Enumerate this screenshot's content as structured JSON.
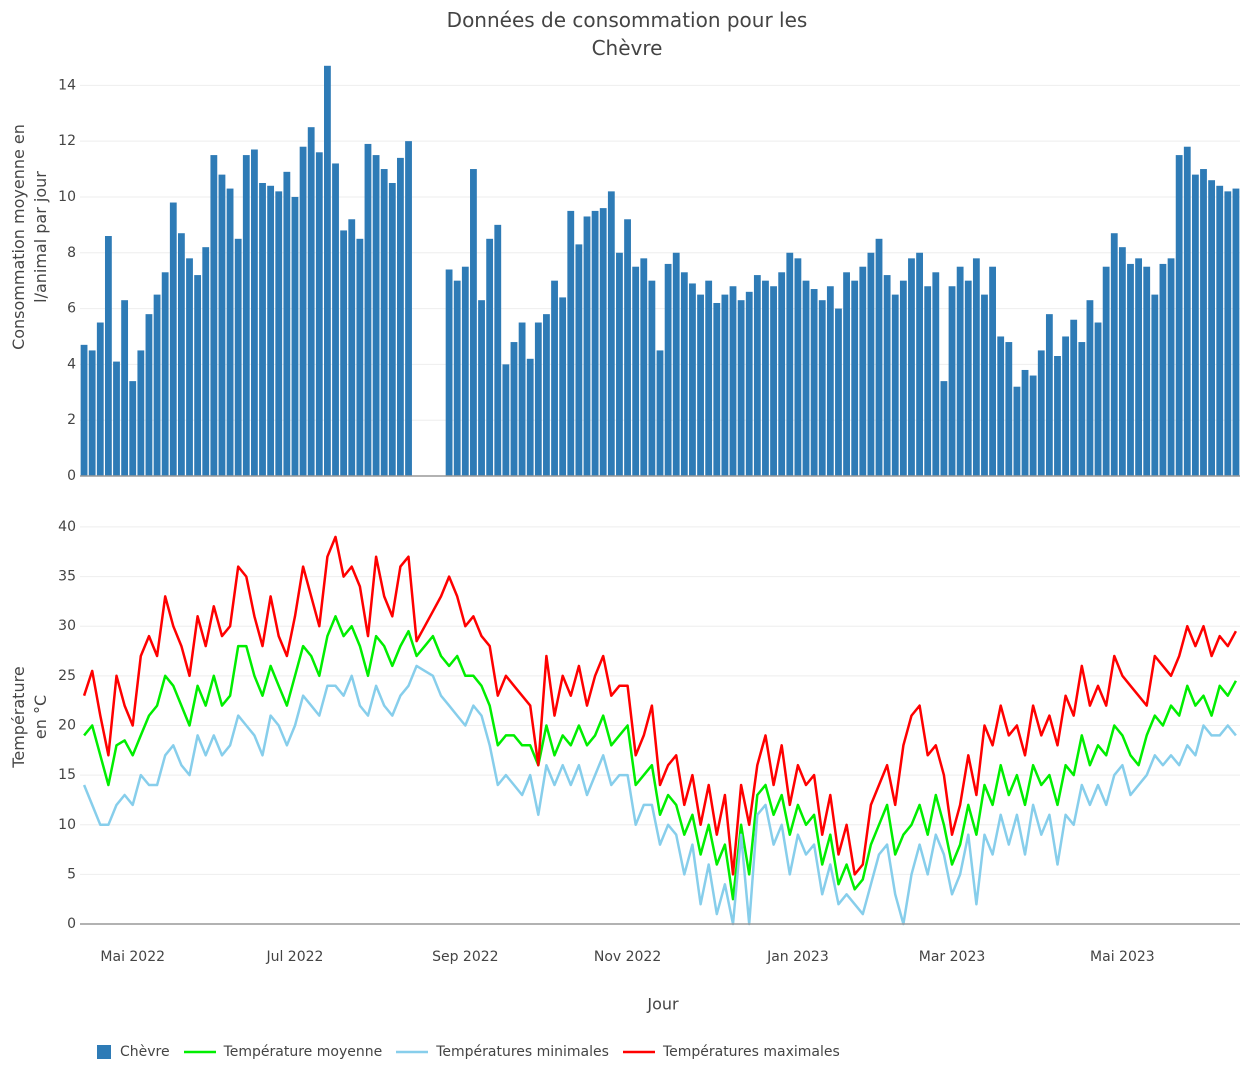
{
  "chart_data": [
    {
      "type": "bar",
      "title": "Données de consommation pour les Chèvre",
      "ylabel": "Consommation moyenne en l/animal par jour",
      "ylim": [
        0,
        14.8
      ],
      "yticks": [
        0,
        2,
        4,
        6,
        8,
        10,
        12,
        14
      ],
      "grid": true,
      "series": [
        {
          "name": "Chèvre",
          "color": "#2e7bb6",
          "values": [
            4.7,
            4.5,
            5.5,
            8.6,
            4.1,
            6.3,
            3.4,
            4.5,
            5.8,
            6.5,
            7.3,
            9.8,
            8.7,
            7.8,
            7.2,
            8.2,
            11.5,
            10.8,
            10.3,
            8.5,
            11.5,
            11.7,
            10.5,
            10.4,
            10.2,
            10.9,
            10.0,
            11.8,
            12.5,
            11.6,
            14.7,
            11.2,
            8.8,
            9.2,
            8.5,
            11.9,
            11.5,
            11.0,
            10.5,
            11.4,
            12.0,
            null,
            null,
            null,
            null,
            7.4,
            7.0,
            7.5,
            11.0,
            6.3,
            8.5,
            9.0,
            4.0,
            4.8,
            5.5,
            4.2,
            5.5,
            5.8,
            7.0,
            6.4,
            9.5,
            8.3,
            9.3,
            9.5,
            9.6,
            10.2,
            8.0,
            9.2,
            7.5,
            7.8,
            7.0,
            4.5,
            7.6,
            8.0,
            7.3,
            6.9,
            6.5,
            7.0,
            6.2,
            6.5,
            6.8,
            6.3,
            6.6,
            7.2,
            7.0,
            6.8,
            7.3,
            8.0,
            7.8,
            7.0,
            6.7,
            6.3,
            6.8,
            6.0,
            7.3,
            7.0,
            7.5,
            8.0,
            8.5,
            7.2,
            6.5,
            7.0,
            7.8,
            8.0,
            6.8,
            7.3,
            3.4,
            6.8,
            7.5,
            7.0,
            7.8,
            6.5,
            7.5,
            5.0,
            4.8,
            3.2,
            3.8,
            3.6,
            4.5,
            5.8,
            4.3,
            5.0,
            5.6,
            4.8,
            6.3,
            5.5,
            7.5,
            8.7,
            8.2,
            7.6,
            7.8,
            7.5,
            6.5,
            7.6,
            7.8,
            11.5,
            11.8,
            10.8,
            11.0,
            10.6,
            10.4,
            10.2,
            10.3
          ]
        }
      ]
    },
    {
      "type": "line",
      "ylabel": "Température en °C",
      "xlabel": "Jour",
      "ylim": [
        -0.5,
        41
      ],
      "yticks": [
        0,
        5,
        10,
        15,
        20,
        25,
        30,
        35,
        40
      ],
      "grid": true,
      "categories": [
        null,
        null,
        null,
        null,
        null,
        null,
        "Mai 2022",
        null,
        null,
        null,
        null,
        null,
        null,
        null,
        null,
        null,
        null,
        null,
        null,
        null,
        null,
        null,
        null,
        null,
        null,
        null,
        "Jul 2022",
        null,
        null,
        null,
        null,
        null,
        null,
        null,
        null,
        null,
        null,
        null,
        null,
        null,
        null,
        null,
        null,
        null,
        null,
        null,
        null,
        "Sep 2022",
        null,
        null,
        null,
        null,
        null,
        null,
        null,
        null,
        null,
        null,
        null,
        null,
        null,
        null,
        null,
        null,
        null,
        null,
        null,
        "Nov 2022",
        null,
        null,
        null,
        null,
        null,
        null,
        null,
        null,
        null,
        null,
        null,
        null,
        null,
        null,
        null,
        null,
        null,
        null,
        null,
        null,
        "Jan 2023",
        null,
        null,
        null,
        null,
        null,
        null,
        null,
        null,
        null,
        null,
        null,
        null,
        null,
        null,
        null,
        null,
        null,
        null,
        "Mar 2023",
        null,
        null,
        null,
        null,
        null,
        null,
        null,
        null,
        null,
        null,
        null,
        null,
        null,
        null,
        null,
        null,
        null,
        null,
        null,
        null,
        "Mai 2023",
        null,
        null,
        null,
        null,
        null,
        null,
        null,
        null,
        null,
        null,
        null,
        null,
        null,
        null
      ],
      "series": [
        {
          "name": "Température moyenne",
          "color": "#00ee00",
          "values": [
            19,
            20,
            17,
            14,
            18,
            18.5,
            17,
            19,
            21,
            22,
            25,
            24,
            22,
            20,
            24,
            22,
            25,
            22,
            23,
            28,
            28,
            25,
            23,
            26,
            24,
            22,
            25,
            28,
            27,
            25,
            29,
            31,
            29,
            30,
            28,
            25,
            29,
            28,
            26,
            28,
            29.5,
            27,
            28,
            29,
            27,
            26,
            27,
            25,
            25,
            24,
            22,
            18,
            19,
            19,
            18,
            18,
            16,
            20,
            17,
            19,
            18,
            20,
            18,
            19,
            21,
            18,
            19,
            20,
            14,
            15,
            16,
            11,
            13,
            12,
            9,
            11,
            7,
            10,
            6,
            8,
            2.5,
            10,
            5,
            13,
            14,
            11,
            13,
            9,
            12,
            10,
            11,
            6,
            9,
            4,
            6,
            3.5,
            4.5,
            8,
            10,
            12,
            7,
            9,
            10,
            12,
            9,
            13,
            10,
            6,
            8,
            12,
            9,
            14,
            12,
            16,
            13,
            15,
            12,
            16,
            14,
            15,
            12,
            16,
            15,
            19,
            16,
            18,
            17,
            20,
            19,
            17,
            16,
            19,
            21,
            20,
            22,
            21,
            24,
            22,
            23,
            21,
            24,
            23,
            24.5
          ]
        },
        {
          "name": "Températures minimales",
          "color": "#87ceeb",
          "values": [
            14,
            12,
            10,
            10,
            12,
            13,
            12,
            15,
            14,
            14,
            17,
            18,
            16,
            15,
            19,
            17,
            19,
            17,
            18,
            21,
            20,
            19,
            17,
            21,
            20,
            18,
            20,
            23,
            22,
            21,
            24,
            24,
            23,
            25,
            22,
            21,
            24,
            22,
            21,
            23,
            24,
            26,
            25.5,
            25,
            23,
            22,
            21,
            20,
            22,
            21,
            18,
            14,
            15,
            14,
            13,
            15,
            11,
            16,
            14,
            16,
            14,
            16,
            13,
            15,
            17,
            14,
            15,
            15,
            10,
            12,
            12,
            8,
            10,
            9,
            5,
            8,
            2,
            6,
            1,
            4,
            0,
            9,
            0,
            11,
            12,
            8,
            10,
            5,
            9,
            7,
            8,
            3,
            6,
            2,
            3,
            2,
            1,
            4,
            7,
            8,
            3,
            0,
            5,
            8,
            5,
            9,
            7,
            3,
            5,
            9,
            2,
            9,
            7,
            11,
            8,
            11,
            7,
            12,
            9,
            11,
            6,
            11,
            10,
            14,
            12,
            14,
            12,
            15,
            16,
            13,
            14,
            15,
            17,
            16,
            17,
            16,
            18,
            17,
            20,
            19,
            19,
            20,
            19
          ]
        },
        {
          "name": "Températures maximales",
          "color": "#ff0000",
          "values": [
            23,
            25.5,
            21,
            17,
            25,
            22,
            20,
            27,
            29,
            27,
            33,
            30,
            28,
            25,
            31,
            28,
            32,
            29,
            30,
            36,
            35,
            31,
            28,
            33,
            29,
            27,
            31,
            36,
            33,
            30,
            37,
            39,
            35,
            36,
            34,
            29,
            37,
            33,
            31,
            36,
            37,
            28.5,
            30,
            31.5,
            33,
            35,
            33,
            30,
            31,
            29,
            28,
            23,
            25,
            24,
            23,
            22,
            16,
            27,
            21,
            25,
            23,
            26,
            22,
            25,
            27,
            23,
            24,
            24,
            17,
            19,
            22,
            14,
            16,
            17,
            12,
            15,
            10,
            14,
            9,
            13,
            5,
            14,
            10,
            16,
            19,
            14,
            18,
            12,
            16,
            14,
            15,
            9,
            13,
            7,
            10,
            5,
            6,
            12,
            14,
            16,
            12,
            18,
            21,
            22,
            17,
            18,
            15,
            9,
            12,
            17,
            13,
            20,
            18,
            22,
            19,
            20,
            17,
            22,
            19,
            21,
            18,
            23,
            21,
            26,
            22,
            24,
            22,
            27,
            25,
            24,
            23,
            22,
            27,
            26,
            25,
            27,
            30,
            28,
            30,
            27,
            29,
            28,
            29.5
          ]
        }
      ]
    }
  ]
}
